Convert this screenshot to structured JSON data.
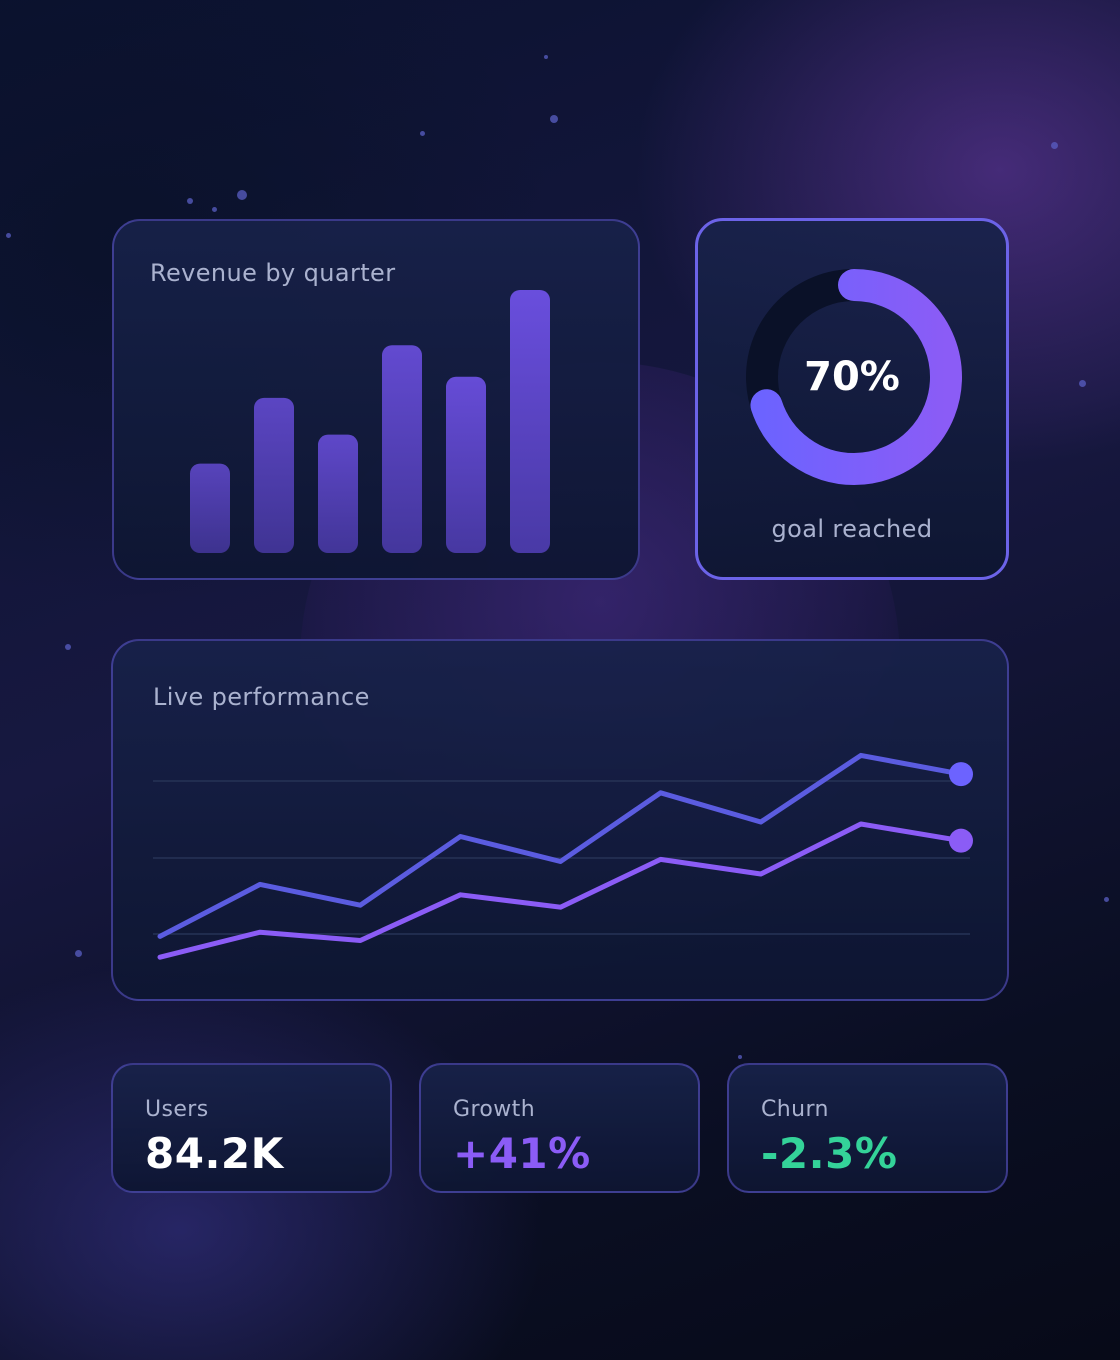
{
  "revenue": {
    "title": "Revenue by quarter"
  },
  "goal": {
    "value_text": "70%",
    "label": "goal reached",
    "progress": 0.7
  },
  "performance": {
    "title": "Live performance"
  },
  "stats": [
    {
      "label": "Users",
      "value": "84.2K",
      "color": "#ffffff"
    },
    {
      "label": "Growth",
      "value": "+41%",
      "color": "#8b5cf6"
    },
    {
      "label": "Churn",
      "value": "-2.3%",
      "color": "#34d399"
    }
  ],
  "colors": {
    "bar_top": "#6b4fe0",
    "bar_bottom": "#4a3aa8",
    "donut_track": "#0a1128",
    "donut_start": "#6c63ff",
    "donut_end": "#8b5cf6",
    "series_a": "#5b5ce0",
    "series_b": "#8b5cf6",
    "accent_dot": "#6c63ff"
  },
  "chart_data": [
    {
      "type": "bar",
      "title": "Revenue by quarter",
      "categories": [
        "",
        "",
        "",
        "",
        "",
        ""
      ],
      "values": [
        34,
        59,
        45,
        79,
        67,
        100
      ],
      "ylim": [
        0,
        100
      ],
      "grid": false
    },
    {
      "type": "pie",
      "title": "",
      "values": [
        70,
        30
      ],
      "labels": [
        "goal reached",
        ""
      ]
    },
    {
      "type": "line",
      "title": "Live performance",
      "x": [
        0,
        1,
        2,
        3,
        4,
        5,
        6,
        7,
        8
      ],
      "ylim": [
        0,
        100
      ],
      "grid": true,
      "series": [
        {
          "values": [
            8,
            33,
            23,
            56,
            44,
            77,
            63,
            95,
            86
          ]
        },
        {
          "values": [
            -2,
            10,
            6,
            28,
            22,
            45,
            38,
            62,
            54
          ]
        }
      ]
    }
  ]
}
